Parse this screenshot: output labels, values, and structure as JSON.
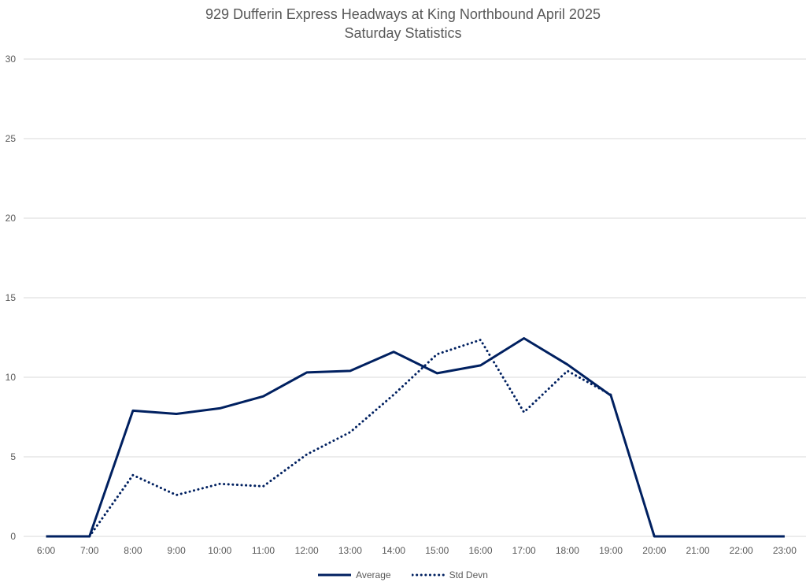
{
  "chart_data": {
    "type": "line",
    "title": "929 Dufferin Express Headways at King Northbound April 2025",
    "subtitle": "Saturday Statistics",
    "xlabel": "",
    "ylabel": "",
    "categories": [
      "6:00",
      "7:00",
      "8:00",
      "9:00",
      "10:00",
      "11:00",
      "12:00",
      "13:00",
      "14:00",
      "15:00",
      "16:00",
      "17:00",
      "18:00",
      "19:00",
      "20:00",
      "21:00",
      "22:00",
      "23:00"
    ],
    "ylim": [
      0,
      30
    ],
    "yticks": [
      0,
      5,
      10,
      15,
      20,
      25,
      30
    ],
    "grid": true,
    "legend_position": "bottom",
    "series": [
      {
        "name": "Average",
        "style": "solid",
        "color": "#002060",
        "values": [
          0,
          0,
          7.9,
          7.7,
          8.05,
          8.8,
          10.3,
          10.4,
          11.6,
          10.25,
          10.75,
          12.45,
          10.8,
          8.85,
          0,
          0,
          0,
          0
        ]
      },
      {
        "name": "Std Devn",
        "style": "dotted",
        "color": "#002060",
        "values": [
          null,
          0,
          3.85,
          2.6,
          3.3,
          3.15,
          5.15,
          6.55,
          8.9,
          11.45,
          12.35,
          7.8,
          10.4,
          8.9,
          null,
          null,
          null,
          null
        ]
      }
    ]
  }
}
